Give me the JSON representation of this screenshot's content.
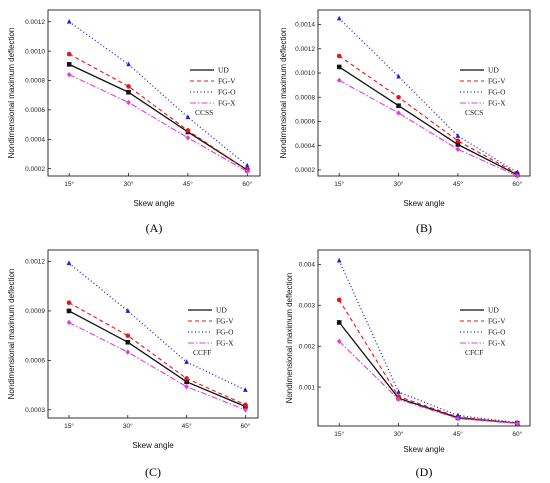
{
  "figure": {
    "chart_data": [
      {
        "type": "line",
        "panel_label": "(A)",
        "case_label": "CCSS",
        "xlabel": "Skew angle",
        "ylabel": "Nondimensional maximum deflection",
        "categories": [
          "15°",
          "30°",
          "45°",
          "60°"
        ],
        "ylim": [
          0.00015,
          0.00128
        ],
        "yticks": [
          0.0002,
          0.0004,
          0.0006,
          0.0008,
          0.001,
          0.0012
        ],
        "ytick_labels": [
          "0.0002",
          "0.0004",
          "0.0006",
          "0.0008",
          "0.0010",
          "0.0012"
        ],
        "series": [
          {
            "name": "UD",
            "values": [
              0.00091,
              0.00072,
              0.00045,
              0.00019
            ]
          },
          {
            "name": "FG-V",
            "values": [
              0.00098,
              0.00076,
              0.00046,
              0.00019
            ]
          },
          {
            "name": "FG-O",
            "values": [
              0.0012,
              0.00091,
              0.00055,
              0.00022
            ]
          },
          {
            "name": "FG-X",
            "values": [
              0.00084,
              0.00065,
              0.00041,
              0.00018
            ]
          }
        ],
        "grid": false,
        "legend": "right"
      },
      {
        "type": "line",
        "panel_label": "(B)",
        "case_label": "CSCS",
        "xlabel": "Skew angle",
        "ylabel": "Nondimensional maximum deflection",
        "categories": [
          "15°",
          "30°",
          "45°",
          "60°"
        ],
        "ylim": [
          0.00015,
          0.00152
        ],
        "yticks": [
          0.0002,
          0.0004,
          0.0006,
          0.0008,
          0.001,
          0.0012,
          0.0014
        ],
        "ytick_labels": [
          "0.0002",
          "0.0004",
          "0.0006",
          "0.0008",
          "0.0010",
          "0.0012",
          "0.0014"
        ],
        "series": [
          {
            "name": "UD",
            "values": [
              0.00105,
              0.00073,
              0.00041,
              0.00016
            ]
          },
          {
            "name": "FG-V",
            "values": [
              0.00114,
              0.0008,
              0.00044,
              0.00017
            ]
          },
          {
            "name": "FG-O",
            "values": [
              0.00145,
              0.00097,
              0.00048,
              0.00018
            ]
          },
          {
            "name": "FG-X",
            "values": [
              0.00094,
              0.00067,
              0.00037,
              0.00015
            ]
          }
        ],
        "grid": false,
        "legend": "right"
      },
      {
        "type": "line",
        "panel_label": "(C)",
        "case_label": "CCFF",
        "xlabel": "Skew angle",
        "ylabel": "Nondimensional maximum deflection",
        "categories": [
          "15°",
          "30°",
          "45°",
          "60°"
        ],
        "ylim": [
          0.00025,
          0.00127
        ],
        "yticks": [
          0.0003,
          0.0006,
          0.0009,
          0.0012
        ],
        "ytick_labels": [
          "0.0003",
          "0.0006",
          "0.0009",
          "0.0012"
        ],
        "series": [
          {
            "name": "UD",
            "values": [
              0.0009,
              0.00071,
              0.00047,
              0.00032
            ]
          },
          {
            "name": "FG-V",
            "values": [
              0.00095,
              0.00075,
              0.00049,
              0.00033
            ]
          },
          {
            "name": "FG-O",
            "values": [
              0.00119,
              0.0009,
              0.00059,
              0.00042
            ]
          },
          {
            "name": "FG-X",
            "values": [
              0.00083,
              0.00065,
              0.00044,
              0.0003
            ]
          }
        ],
        "grid": false,
        "legend": "right"
      },
      {
        "type": "line",
        "panel_label": "(D)",
        "case_label": "CFCF",
        "xlabel": "Skew angle",
        "ylabel": "Nondimensional maximum deflection",
        "categories": [
          "15°",
          "30°",
          "45°",
          "60°"
        ],
        "ylim": [
          5e-05,
          0.00435
        ],
        "yticks": [
          0.001,
          0.002,
          0.003,
          0.004
        ],
        "ytick_labels": [
          "0.001",
          "0.002",
          "0.003",
          "0.004"
        ],
        "series": [
          {
            "name": "UD",
            "values": [
              0.00258,
              0.00073,
              0.00025,
              0.00012
            ]
          },
          {
            "name": "FG-V",
            "values": [
              0.00313,
              0.00077,
              0.00027,
              0.00012
            ]
          },
          {
            "name": "FG-O",
            "values": [
              0.00409,
              0.00088,
              0.00031,
              0.00013
            ]
          },
          {
            "name": "FG-X",
            "values": [
              0.00212,
              0.0007,
              0.00023,
              0.00011
            ]
          }
        ],
        "grid": false,
        "legend": "right"
      }
    ],
    "series_styles": [
      {
        "color": "#111111",
        "dash": "",
        "width": 1.3,
        "marker": "square"
      },
      {
        "color": "#e8141b",
        "dash": "4 3",
        "width": 1.1,
        "marker": "circle"
      },
      {
        "color": "#2020d8",
        "dash": "1 2.5",
        "width": 1.3,
        "marker": "triangle"
      },
      {
        "color": "#e040d8",
        "dash": "6 2 1.5 2",
        "width": 1.1,
        "marker": "diamond"
      }
    ]
  }
}
